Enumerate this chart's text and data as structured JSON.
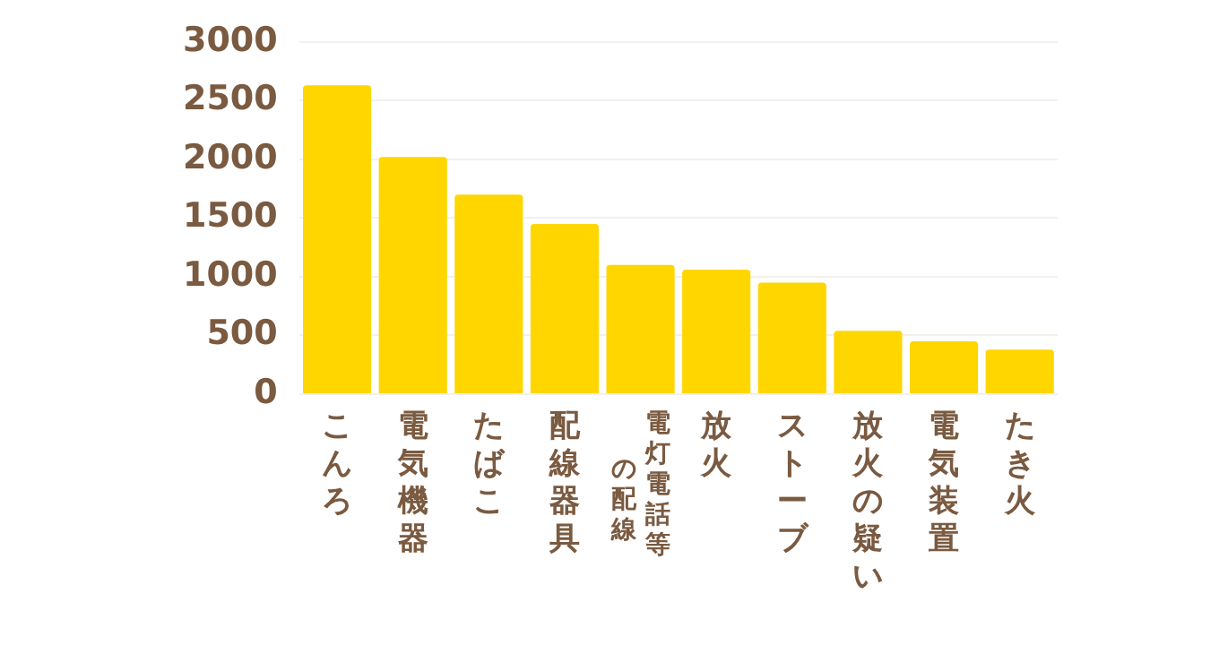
{
  "chart_data": {
    "type": "bar",
    "categories": [
      "こんろ",
      "電気機器",
      "たばこ",
      "配線器具",
      "電灯電話等の配線",
      "放火",
      "ストーブ",
      "放火の疑い",
      "電気装置",
      "たき火"
    ],
    "values": [
      2630,
      2020,
      1700,
      1450,
      1100,
      1060,
      950,
      540,
      450,
      380
    ],
    "color": "#ffd600",
    "ylim": [
      0,
      3000
    ],
    "yticks": [
      0,
      500,
      1000,
      1500,
      2000,
      2500,
      3000
    ],
    "grid": "y",
    "legend": false
  }
}
